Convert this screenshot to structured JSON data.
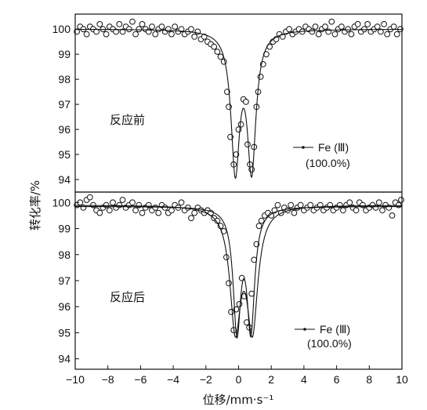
{
  "chart_data": {
    "type": "scatter",
    "xlabel": "位移/mm·s⁻¹",
    "ylabel": "转化率/%",
    "xlim": [
      -10,
      10
    ],
    "xticks": [
      -10,
      -8,
      -6,
      -4,
      -2,
      0,
      2,
      4,
      6,
      8,
      10
    ],
    "grid": false,
    "panels": [
      {
        "label": "反应前",
        "ylim": [
          93.5,
          100.6
        ],
        "yticks": [
          94,
          95,
          96,
          97,
          98,
          99,
          100
        ],
        "legend": {
          "series_name": "Fe (Ⅲ)",
          "percent": "(100.0%)",
          "placement": "lower-right"
        },
        "fit_lines": [
          {
            "shape": "doublet",
            "baseline": 100.0,
            "centers": [
              -0.2,
              0.8
            ],
            "depths": [
              5.45,
              5.4
            ],
            "halfwidth": 0.32
          }
        ],
        "points": [
          [
            -9.9,
            99.9
          ],
          [
            -9.7,
            100.1
          ],
          [
            -9.5,
            100.0
          ],
          [
            -9.3,
            99.8
          ],
          [
            -9.1,
            100.1
          ],
          [
            -8.9,
            100.0
          ],
          [
            -8.7,
            99.9
          ],
          [
            -8.5,
            100.2
          ],
          [
            -8.3,
            100.0
          ],
          [
            -8.1,
            99.8
          ],
          [
            -7.9,
            100.1
          ],
          [
            -7.7,
            100.0
          ],
          [
            -7.5,
            99.9
          ],
          [
            -7.3,
            100.2
          ],
          [
            -7.1,
            99.9
          ],
          [
            -6.9,
            100.1
          ],
          [
            -6.7,
            100.0
          ],
          [
            -6.5,
            100.3
          ],
          [
            -6.3,
            99.8
          ],
          [
            -6.1,
            100.0
          ],
          [
            -5.9,
            100.2
          ],
          [
            -5.7,
            100.0
          ],
          [
            -5.5,
            99.9
          ],
          [
            -5.3,
            100.1
          ],
          [
            -5.1,
            99.8
          ],
          [
            -4.9,
            100.0
          ],
          [
            -4.7,
            100.1
          ],
          [
            -4.5,
            99.9
          ],
          [
            -4.3,
            100.0
          ],
          [
            -4.1,
            99.8
          ],
          [
            -3.9,
            100.1
          ],
          [
            -3.7,
            99.9
          ],
          [
            -3.5,
            100.0
          ],
          [
            -3.3,
            99.8
          ],
          [
            -3.1,
            99.9
          ],
          [
            -2.9,
            100.0
          ],
          [
            -2.7,
            99.7
          ],
          [
            -2.5,
            99.9
          ],
          [
            -2.3,
            99.6
          ],
          [
            -2.1,
            99.7
          ],
          [
            -1.9,
            99.5
          ],
          [
            -1.7,
            99.4
          ],
          [
            -1.5,
            99.3
          ],
          [
            -1.3,
            99.1
          ],
          [
            -1.1,
            98.9
          ],
          [
            -0.9,
            98.7
          ],
          [
            -0.7,
            97.5
          ],
          [
            -0.6,
            96.9
          ],
          [
            -0.5,
            95.7
          ],
          [
            -0.3,
            94.6
          ],
          [
            -0.15,
            95.0
          ],
          [
            0.0,
            96.0
          ],
          [
            0.15,
            96.2
          ],
          [
            0.3,
            97.2
          ],
          [
            0.45,
            97.1
          ],
          [
            0.55,
            95.4
          ],
          [
            0.7,
            94.6
          ],
          [
            0.8,
            94.4
          ],
          [
            0.95,
            95.3
          ],
          [
            1.1,
            96.9
          ],
          [
            1.2,
            97.5
          ],
          [
            1.35,
            98.1
          ],
          [
            1.5,
            98.6
          ],
          [
            1.7,
            99.0
          ],
          [
            1.9,
            99.3
          ],
          [
            2.1,
            99.5
          ],
          [
            2.3,
            99.6
          ],
          [
            2.5,
            99.8
          ],
          [
            2.7,
            99.7
          ],
          [
            2.9,
            99.9
          ],
          [
            3.1,
            100.0
          ],
          [
            3.3,
            99.8
          ],
          [
            3.5,
            99.9
          ],
          [
            3.7,
            100.0
          ],
          [
            3.9,
            99.9
          ],
          [
            4.1,
            100.1
          ],
          [
            4.3,
            100.0
          ],
          [
            4.5,
            99.9
          ],
          [
            4.7,
            100.1
          ],
          [
            4.9,
            99.8
          ],
          [
            5.1,
            100.0
          ],
          [
            5.3,
            100.1
          ],
          [
            5.5,
            99.9
          ],
          [
            5.7,
            100.3
          ],
          [
            5.9,
            99.8
          ],
          [
            6.1,
            100.0
          ],
          [
            6.3,
            100.1
          ],
          [
            6.5,
            99.9
          ],
          [
            6.7,
            100.0
          ],
          [
            6.9,
            99.8
          ],
          [
            7.1,
            100.1
          ],
          [
            7.3,
            100.2
          ],
          [
            7.5,
            99.9
          ],
          [
            7.7,
            100.0
          ],
          [
            7.9,
            100.2
          ],
          [
            8.1,
            99.9
          ],
          [
            8.3,
            100.0
          ],
          [
            8.5,
            100.1
          ],
          [
            8.7,
            99.9
          ],
          [
            8.9,
            100.2
          ],
          [
            9.1,
            99.8
          ],
          [
            9.3,
            100.0
          ],
          [
            9.5,
            100.1
          ],
          [
            9.7,
            99.8
          ],
          [
            9.9,
            100.0
          ]
        ]
      },
      {
        "label": "反应后",
        "ylim": [
          93.6,
          100.4
        ],
        "yticks": [
          94,
          95,
          96,
          97,
          98,
          99,
          100
        ],
        "legend": {
          "series_name": "Fe (Ⅲ)",
          "percent": "(100.0%)",
          "placement": "lower-right"
        },
        "fit_lines": [
          {
            "shape": "doublet",
            "baseline": 99.85,
            "centers": [
              -0.1,
              0.75
            ],
            "depths": [
              4.6,
              4.55
            ],
            "halfwidth": 0.28
          },
          {
            "shape": "doublet",
            "baseline": 99.9,
            "centers": [
              -0.2,
              0.85
            ],
            "depths": [
              4.5,
              4.5
            ],
            "halfwidth": 0.4
          }
        ],
        "points": [
          [
            -9.9,
            99.9
          ],
          [
            -9.7,
            100.0
          ],
          [
            -9.5,
            99.8
          ],
          [
            -9.3,
            100.1
          ],
          [
            -9.1,
            100.2
          ],
          [
            -8.9,
            99.9
          ],
          [
            -8.7,
            99.7
          ],
          [
            -8.5,
            99.6
          ],
          [
            -8.3,
            99.8
          ],
          [
            -8.1,
            99.9
          ],
          [
            -7.9,
            99.7
          ],
          [
            -7.7,
            100.0
          ],
          [
            -7.5,
            99.8
          ],
          [
            -7.3,
            99.9
          ],
          [
            -7.1,
            100.1
          ],
          [
            -6.9,
            99.8
          ],
          [
            -6.7,
            99.9
          ],
          [
            -6.5,
            100.0
          ],
          [
            -6.3,
            99.7
          ],
          [
            -6.1,
            99.9
          ],
          [
            -5.9,
            99.6
          ],
          [
            -5.7,
            99.8
          ],
          [
            -5.5,
            99.9
          ],
          [
            -5.3,
            99.7
          ],
          [
            -5.1,
            99.8
          ],
          [
            -4.9,
            99.6
          ],
          [
            -4.7,
            99.9
          ],
          [
            -4.5,
            99.8
          ],
          [
            -4.3,
            99.6
          ],
          [
            -4.1,
            99.7
          ],
          [
            -3.9,
            99.9
          ],
          [
            -3.7,
            99.8
          ],
          [
            -3.5,
            100.0
          ],
          [
            -3.3,
            99.7
          ],
          [
            -3.1,
            99.8
          ],
          [
            -2.9,
            99.4
          ],
          [
            -2.7,
            99.6
          ],
          [
            -2.5,
            99.8
          ],
          [
            -2.3,
            99.7
          ],
          [
            -2.1,
            99.6
          ],
          [
            -1.9,
            99.7
          ],
          [
            -1.7,
            99.6
          ],
          [
            -1.5,
            99.4
          ],
          [
            -1.3,
            99.3
          ],
          [
            -1.1,
            99.1
          ],
          [
            -0.9,
            98.9
          ],
          [
            -0.75,
            97.9
          ],
          [
            -0.6,
            96.9
          ],
          [
            -0.45,
            95.8
          ],
          [
            -0.3,
            95.1
          ],
          [
            -0.15,
            95.9
          ],
          [
            0.05,
            96.1
          ],
          [
            0.2,
            97.1
          ],
          [
            0.35,
            96.4
          ],
          [
            0.5,
            95.4
          ],
          [
            0.65,
            95.2
          ],
          [
            0.8,
            96.5
          ],
          [
            0.95,
            97.8
          ],
          [
            1.1,
            98.4
          ],
          [
            1.25,
            99.1
          ],
          [
            1.4,
            99.3
          ],
          [
            1.6,
            99.5
          ],
          [
            1.8,
            99.6
          ],
          [
            2.0,
            99.5
          ],
          [
            2.2,
            99.7
          ],
          [
            2.4,
            99.9
          ],
          [
            2.6,
            99.6
          ],
          [
            2.8,
            99.8
          ],
          [
            3.0,
            99.7
          ],
          [
            3.2,
            99.9
          ],
          [
            3.4,
            99.6
          ],
          [
            3.6,
            99.8
          ],
          [
            3.8,
            99.9
          ],
          [
            4.0,
            99.7
          ],
          [
            4.2,
            99.8
          ],
          [
            4.4,
            99.9
          ],
          [
            4.6,
            99.7
          ],
          [
            4.8,
            99.8
          ],
          [
            5.0,
            99.9
          ],
          [
            5.2,
            99.7
          ],
          [
            5.4,
            99.8
          ],
          [
            5.6,
            99.9
          ],
          [
            5.8,
            99.7
          ],
          [
            6.0,
            99.8
          ],
          [
            6.2,
            99.9
          ],
          [
            6.4,
            99.7
          ],
          [
            6.6,
            99.9
          ],
          [
            6.8,
            100.0
          ],
          [
            7.0,
            99.8
          ],
          [
            7.2,
            99.7
          ],
          [
            7.4,
            100.0
          ],
          [
            7.6,
            99.9
          ],
          [
            7.8,
            99.7
          ],
          [
            8.0,
            99.8
          ],
          [
            8.2,
            99.9
          ],
          [
            8.4,
            99.8
          ],
          [
            8.6,
            100.0
          ],
          [
            8.8,
            99.7
          ],
          [
            9.0,
            99.9
          ],
          [
            9.2,
            99.8
          ],
          [
            9.4,
            99.5
          ],
          [
            9.6,
            100.0
          ],
          [
            9.8,
            99.9
          ],
          [
            9.95,
            100.1
          ]
        ]
      }
    ]
  }
}
